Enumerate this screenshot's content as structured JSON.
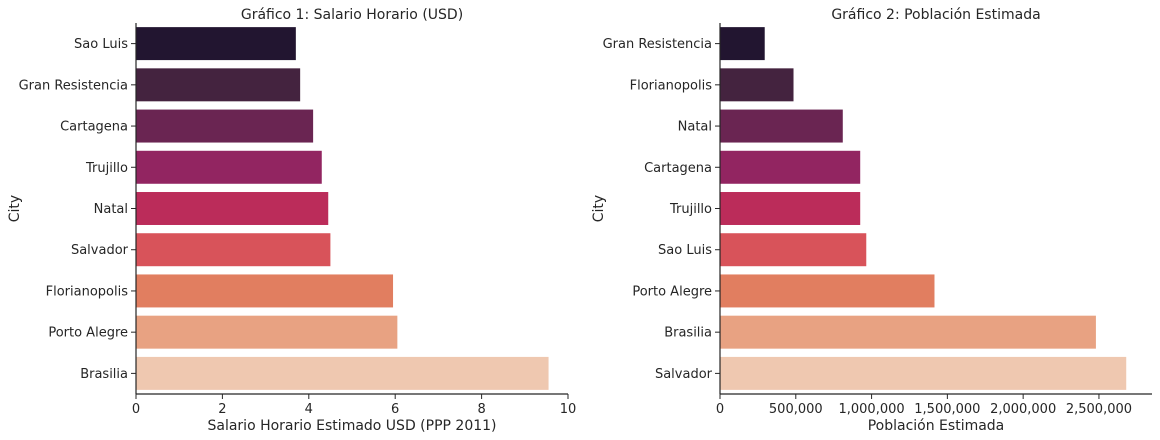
{
  "chart_data": [
    {
      "type": "bar",
      "orientation": "horizontal",
      "title": "Gráfico 1: Salario Horario (USD)",
      "xlabel": "Salario Horario Estimado USD (PPP 2011)",
      "ylabel": "City",
      "xlim": [
        0,
        10
      ],
      "xticks": [
        "0",
        "2",
        "4",
        "6",
        "8",
        "10"
      ],
      "grid": false,
      "categories": [
        "Sao Luis",
        "Gran Resistencia",
        "Cartagena",
        "Trujillo",
        "Natal",
        "Salvador",
        "Florianopolis",
        "Porto Alegre",
        "Brasilia"
      ],
      "values": [
        3.7,
        3.8,
        4.1,
        4.3,
        4.45,
        4.5,
        5.95,
        6.05,
        9.55
      ],
      "colors": [
        "#221530",
        "#44233f",
        "#6a2552",
        "#922561",
        "#bb2c5a",
        "#d8535a",
        "#e17e60",
        "#e8a282",
        "#efc8b0"
      ]
    },
    {
      "type": "bar",
      "orientation": "horizontal",
      "title": "Gráfico 2: Población Estimada",
      "xlabel": "Población Estimada",
      "ylabel": "City",
      "xlim": [
        0,
        2850000
      ],
      "xticks": [
        "0",
        "500,000",
        "1,000,000",
        "1,500,000",
        "2,000,000",
        "2,500,000"
      ],
      "grid": false,
      "categories": [
        "Gran Resistencia",
        "Florianopolis",
        "Natal",
        "Cartagena",
        "Trujillo",
        "Sao Luis",
        "Porto Alegre",
        "Brasilia",
        "Salvador"
      ],
      "values": [
        295000,
        485000,
        810000,
        925000,
        925000,
        965000,
        1415000,
        2480000,
        2680000
      ],
      "colors": [
        "#221530",
        "#44233f",
        "#6a2552",
        "#922561",
        "#bb2c5a",
        "#d8535a",
        "#e17e60",
        "#e8a282",
        "#efc8b0"
      ]
    }
  ]
}
